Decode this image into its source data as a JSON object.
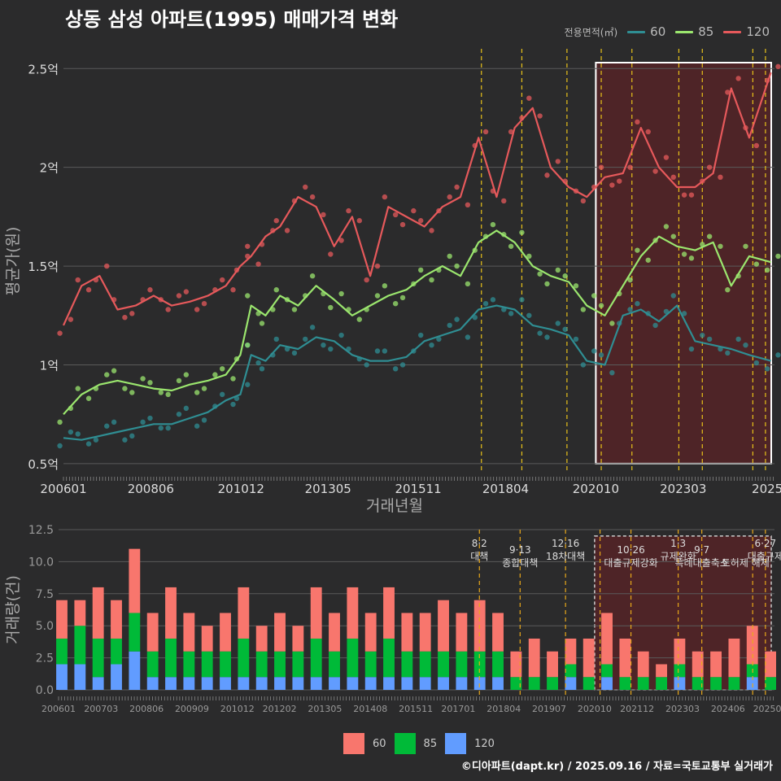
{
  "title": "상동 삼성 아파트(1995) 매매가격 변화",
  "legend": {
    "title": "전용면적(㎡)",
    "items": [
      {
        "label": "60",
        "line_color": "#2f8e93",
        "bar_color": "#f8766d"
      },
      {
        "label": "85",
        "line_color": "#9be66e",
        "bar_color": "#00ba38"
      },
      {
        "label": "120",
        "line_color": "#e6595b",
        "bar_color": "#619cff"
      }
    ]
  },
  "footer": "©디아파트(dapt.kr) / 2025.09.16 / 자료=국토교통부 실거래가",
  "chart_data": [
    {
      "type": "line",
      "xlabel": "거래년월",
      "ylabel": "평균가(원)",
      "xlim": [
        2006.0,
        2025.7
      ],
      "ylim": [
        0.45,
        2.6
      ],
      "x_ticks": [
        {
          "x": 2006.0,
          "label": "200601"
        },
        {
          "x": 2008.42,
          "label": "200806"
        },
        {
          "x": 2010.92,
          "label": "201012"
        },
        {
          "x": 2013.33,
          "label": "201305"
        },
        {
          "x": 2015.83,
          "label": "201511"
        },
        {
          "x": 2018.25,
          "label": "201804"
        },
        {
          "x": 2020.75,
          "label": "202010"
        },
        {
          "x": 2023.17,
          "label": "202303"
        },
        {
          "x": 2025.5,
          "label": "2025"
        }
      ],
      "y_ticks": [
        {
          "y": 0.5,
          "label": "0.5억"
        },
        {
          "y": 1.0,
          "label": "1억"
        },
        {
          "y": 1.5,
          "label": "1.5억"
        },
        {
          "y": 2.0,
          "label": "2억"
        },
        {
          "y": 2.5,
          "label": "2.5억"
        }
      ],
      "grid": true,
      "legend_position": "top-right",
      "highlight_range": [
        2020.75,
        2025.7
      ],
      "policy_lines": [
        2017.58,
        2018.7,
        2019.95,
        2020.9,
        2021.75,
        2023.05,
        2023.7,
        2025.1,
        2025.45
      ],
      "series": [
        {
          "name": "60",
          "color": "#2f8e93",
          "x": [
            2006.0,
            2006.5,
            2007.0,
            2007.5,
            2008.0,
            2008.5,
            2009.0,
            2009.5,
            2010.0,
            2010.5,
            2010.9,
            2011.2,
            2011.6,
            2012.0,
            2012.5,
            2013.0,
            2013.5,
            2014.0,
            2014.5,
            2015.0,
            2015.5,
            2016.0,
            2016.5,
            2017.0,
            2017.5,
            2018.0,
            2018.5,
            2019.0,
            2019.5,
            2020.0,
            2020.5,
            2021.0,
            2021.5,
            2022.0,
            2022.5,
            2023.0,
            2023.5,
            2024.0,
            2024.5,
            2025.0,
            2025.6
          ],
          "y": [
            0.63,
            0.62,
            0.64,
            0.66,
            0.68,
            0.7,
            0.7,
            0.73,
            0.76,
            0.82,
            0.85,
            1.05,
            1.02,
            1.1,
            1.08,
            1.14,
            1.12,
            1.05,
            1.02,
            1.02,
            1.04,
            1.12,
            1.15,
            1.18,
            1.28,
            1.3,
            1.28,
            1.2,
            1.18,
            1.15,
            1.02,
            1.0,
            1.25,
            1.28,
            1.22,
            1.3,
            1.12,
            1.1,
            1.08,
            1.05,
            1.02
          ]
        },
        {
          "name": "85",
          "color": "#9be66e",
          "x": [
            2006.0,
            2006.5,
            2007.0,
            2007.5,
            2008.0,
            2008.5,
            2009.0,
            2009.5,
            2010.0,
            2010.5,
            2010.9,
            2011.2,
            2011.6,
            2012.0,
            2012.5,
            2013.0,
            2013.5,
            2014.0,
            2014.5,
            2015.0,
            2015.5,
            2016.0,
            2016.5,
            2017.0,
            2017.5,
            2018.0,
            2018.5,
            2019.0,
            2019.5,
            2020.0,
            2020.5,
            2021.0,
            2021.5,
            2022.0,
            2022.5,
            2023.0,
            2023.5,
            2024.0,
            2024.5,
            2025.0,
            2025.6
          ],
          "y": [
            0.75,
            0.85,
            0.9,
            0.92,
            0.9,
            0.88,
            0.87,
            0.9,
            0.92,
            0.95,
            1.05,
            1.3,
            1.25,
            1.35,
            1.3,
            1.4,
            1.33,
            1.25,
            1.3,
            1.35,
            1.38,
            1.45,
            1.5,
            1.45,
            1.62,
            1.68,
            1.62,
            1.5,
            1.45,
            1.42,
            1.3,
            1.25,
            1.4,
            1.55,
            1.65,
            1.6,
            1.58,
            1.62,
            1.4,
            1.55,
            1.52
          ]
        },
        {
          "name": "120",
          "color": "#e6595b",
          "x": [
            2006.0,
            2006.5,
            2007.0,
            2007.5,
            2008.0,
            2008.5,
            2009.0,
            2009.5,
            2010.0,
            2010.5,
            2010.9,
            2011.2,
            2011.6,
            2012.0,
            2012.5,
            2013.0,
            2013.5,
            2014.0,
            2014.5,
            2015.0,
            2015.5,
            2016.0,
            2016.5,
            2017.0,
            2017.5,
            2018.0,
            2018.5,
            2019.0,
            2019.5,
            2020.0,
            2020.5,
            2021.0,
            2021.5,
            2022.0,
            2022.5,
            2023.0,
            2023.5,
            2024.0,
            2024.5,
            2025.0,
            2025.6
          ],
          "y": [
            1.2,
            1.4,
            1.45,
            1.28,
            1.3,
            1.35,
            1.3,
            1.32,
            1.35,
            1.4,
            1.5,
            1.55,
            1.65,
            1.7,
            1.85,
            1.8,
            1.6,
            1.75,
            1.45,
            1.8,
            1.75,
            1.7,
            1.8,
            1.85,
            2.15,
            1.85,
            2.2,
            2.3,
            2.0,
            1.9,
            1.85,
            1.95,
            1.97,
            2.2,
            2.0,
            1.9,
            1.9,
            1.97,
            2.4,
            2.15,
            2.48
          ]
        }
      ]
    },
    {
      "type": "bar",
      "stacked": true,
      "ylabel": "거래량(건)",
      "ylim": [
        0,
        12.5
      ],
      "x_ticks": [
        {
          "x": 2006.0,
          "label": "200601"
        },
        {
          "x": 2007.17,
          "label": "200703"
        },
        {
          "x": 2008.42,
          "label": "200806"
        },
        {
          "x": 2009.67,
          "label": "200909"
        },
        {
          "x": 2010.92,
          "label": "201012"
        },
        {
          "x": 2012.08,
          "label": "201202"
        },
        {
          "x": 2013.33,
          "label": "201305"
        },
        {
          "x": 2014.58,
          "label": "201408"
        },
        {
          "x": 2015.83,
          "label": "201511"
        },
        {
          "x": 2017.0,
          "label": "201701"
        },
        {
          "x": 2018.25,
          "label": "201804"
        },
        {
          "x": 2019.5,
          "label": "201907"
        },
        {
          "x": 2020.75,
          "label": "202010"
        },
        {
          "x": 2021.92,
          "label": "202112"
        },
        {
          "x": 2023.17,
          "label": "202303"
        },
        {
          "x": 2024.42,
          "label": "202406"
        },
        {
          "x": 2025.5,
          "label": "20250"
        }
      ],
      "y_ticks": [
        {
          "y": 0,
          "label": "0.0"
        },
        {
          "y": 2.5,
          "label": "2.5"
        },
        {
          "y": 5,
          "label": "5.0"
        },
        {
          "y": 7.5,
          "label": "7.5"
        },
        {
          "y": 10,
          "label": "10.0"
        },
        {
          "y": 12.5,
          "label": "12.5"
        }
      ],
      "months": [
        2006.0,
        2006.5,
        2007.0,
        2007.5,
        2008.0,
        2008.5,
        2009.0,
        2009.5,
        2010.0,
        2010.5,
        2011.0,
        2011.5,
        2012.0,
        2012.5,
        2013.0,
        2013.5,
        2014.0,
        2014.5,
        2015.0,
        2015.5,
        2016.0,
        2016.5,
        2017.0,
        2017.5,
        2018.0,
        2018.5,
        2019.0,
        2019.5,
        2020.0,
        2020.5,
        2021.0,
        2021.5,
        2022.0,
        2022.5,
        2023.0,
        2023.5,
        2024.0,
        2024.5,
        2025.0,
        2025.5
      ],
      "series": [
        {
          "name": "60",
          "values": [
            3,
            2,
            4,
            3,
            5,
            3,
            4,
            3,
            2,
            3,
            4,
            2,
            3,
            2,
            4,
            3,
            4,
            3,
            4,
            3,
            3,
            4,
            3,
            4,
            3,
            2,
            3,
            2,
            2,
            3,
            4,
            3,
            2,
            1,
            2,
            2,
            2,
            3,
            3,
            2
          ]
        },
        {
          "name": "85",
          "values": [
            2,
            3,
            3,
            2,
            3,
            2,
            3,
            2,
            2,
            2,
            3,
            2,
            2,
            2,
            3,
            2,
            3,
            2,
            3,
            2,
            2,
            2,
            2,
            2,
            2,
            1,
            1,
            1,
            1,
            1,
            1,
            1,
            1,
            1,
            1,
            1,
            1,
            1,
            1,
            1
          ]
        },
        {
          "name": "120",
          "values": [
            2,
            2,
            1,
            2,
            3,
            1,
            1,
            1,
            1,
            1,
            1,
            1,
            1,
            1,
            1,
            1,
            1,
            1,
            1,
            1,
            1,
            1,
            1,
            1,
            1,
            0,
            0,
            0,
            1,
            0,
            1,
            0,
            0,
            0,
            1,
            0,
            0,
            0,
            1,
            0
          ]
        }
      ],
      "annotations": [
        {
          "x": 2017.58,
          "date": "8·2",
          "text": "대책"
        },
        {
          "x": 2018.7,
          "date": "9·13",
          "text": "종합대책"
        },
        {
          "x": 2019.95,
          "date": "12·16",
          "text": "18차대책"
        },
        {
          "x": 2021.75,
          "date": "10·26",
          "text": "대출규제강화"
        },
        {
          "x": 2023.05,
          "date": "1·3",
          "text": "규제완화"
        },
        {
          "x": 2023.7,
          "date": "9·7",
          "text": "특례대출축소"
        },
        {
          "x": 2025.45,
          "date": "6·27",
          "text": "대출규제"
        },
        {
          "x": 2024.9,
          "date": "",
          "text": "토허제 해제"
        }
      ]
    }
  ]
}
